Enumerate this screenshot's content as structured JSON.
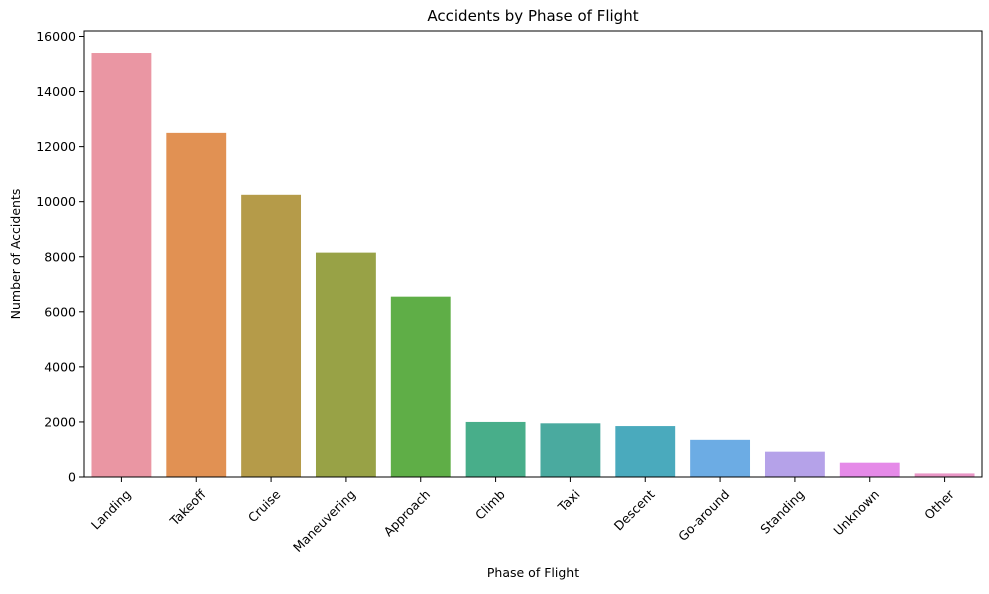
{
  "chart_data": {
    "type": "bar",
    "title": "Accidents by Phase of Flight",
    "xlabel": "Phase of Flight",
    "ylabel": "Number of Accidents",
    "categories": [
      "Landing",
      "Takeoff",
      "Cruise",
      "Maneuvering",
      "Approach",
      "Climb",
      "Taxi",
      "Descent",
      "Go-around",
      "Standing",
      "Unknown",
      "Other"
    ],
    "values": [
      15400,
      12500,
      10250,
      8150,
      6550,
      2000,
      1950,
      1850,
      1350,
      920,
      520,
      130
    ],
    "colors": [
      "#ea96a3",
      "#e19153",
      "#b59b49",
      "#98a246",
      "#5fae47",
      "#48ae8a",
      "#4aaa9f",
      "#4aaabd",
      "#6cace4",
      "#b5a2e9",
      "#e58ae8",
      "#e996c6"
    ],
    "ylim": [
      0,
      16200
    ],
    "yticks": [
      0,
      2000,
      4000,
      6000,
      8000,
      10000,
      12000,
      14000,
      16000
    ],
    "grid": false,
    "legend": "none"
  }
}
